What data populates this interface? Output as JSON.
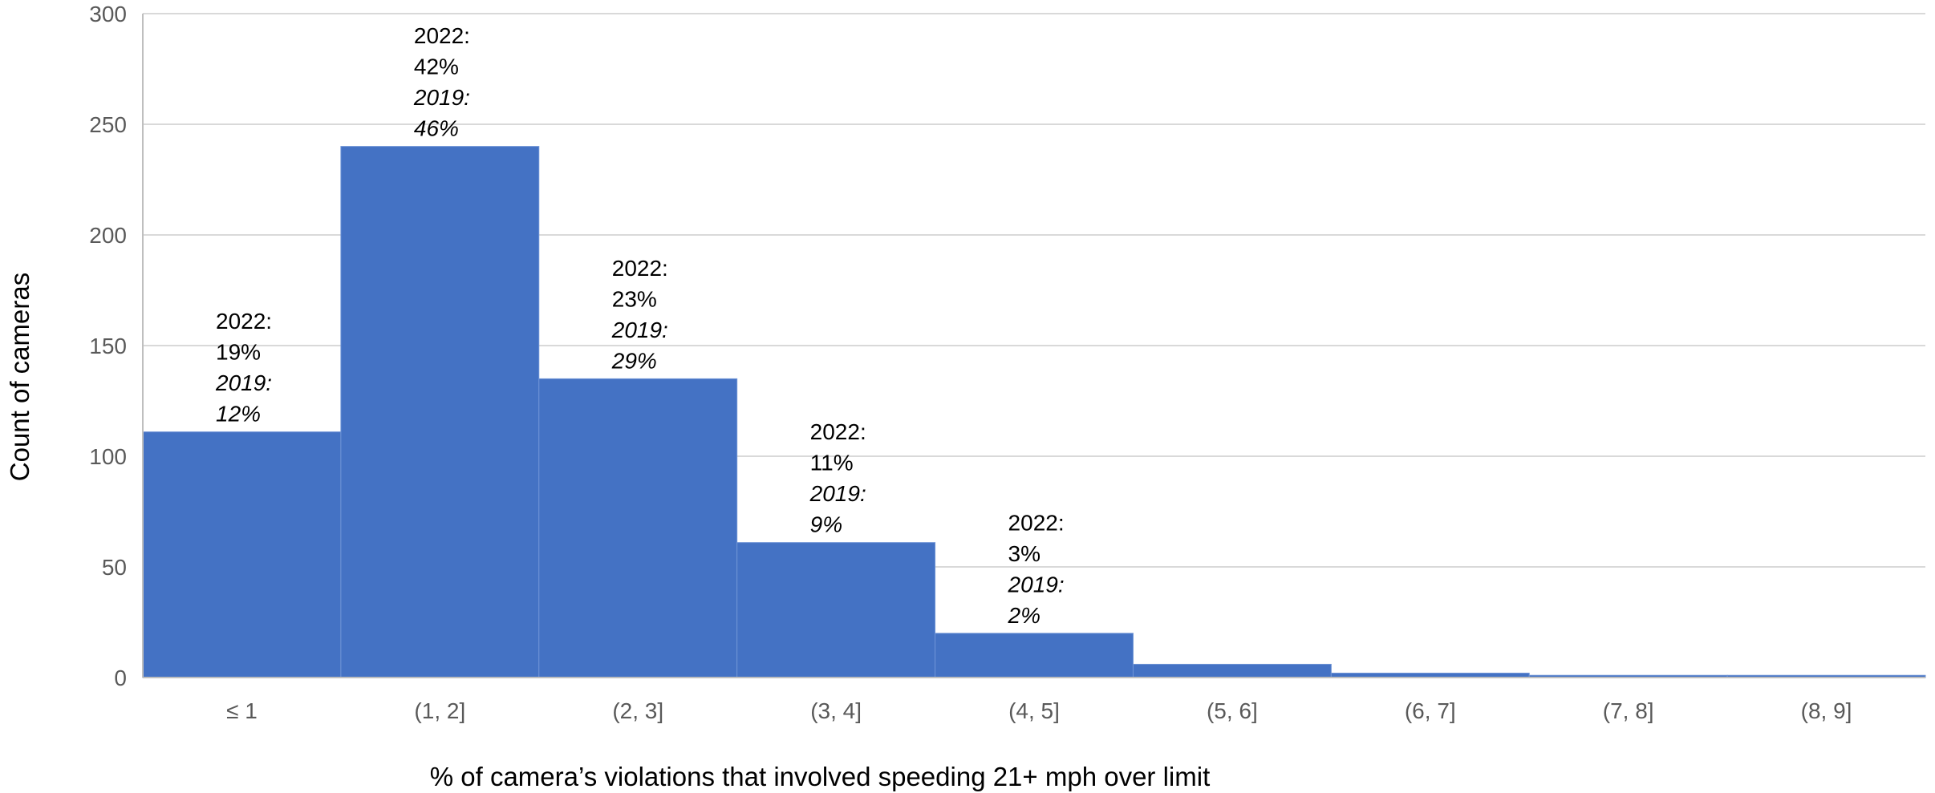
{
  "chart_data": {
    "type": "bar",
    "xlabel": "% of camera’s violations that involved speeding 21+ mph over limit",
    "ylabel": "Count of cameras",
    "ylim": [
      0,
      300
    ],
    "yticks": [
      0,
      50,
      100,
      150,
      200,
      250,
      300
    ],
    "grid": true,
    "bar_color": "#4472C4",
    "categories": [
      "≤ 1",
      "(1, 2]",
      "(2, 3]",
      "(3, 4]",
      "(4, 5]",
      "(5, 6]",
      "(6, 7]",
      "(7, 8]",
      "(8, 9]"
    ],
    "values": [
      111,
      240,
      135,
      61,
      20,
      6,
      2,
      1,
      1
    ],
    "annotations": [
      {
        "category": "≤ 1",
        "lines": [
          {
            "text": "2022:",
            "italic": false
          },
          {
            "text": "19%",
            "italic": false
          },
          {
            "text": "2019:",
            "italic": true
          },
          {
            "text": "12%",
            "italic": true
          }
        ]
      },
      {
        "category": "(1, 2]",
        "lines": [
          {
            "text": "2022:",
            "italic": false
          },
          {
            "text": "42%",
            "italic": false
          },
          {
            "text": "2019:",
            "italic": true
          },
          {
            "text": "46%",
            "italic": true
          }
        ]
      },
      {
        "category": "(2, 3]",
        "lines": [
          {
            "text": "2022:",
            "italic": false
          },
          {
            "text": "23%",
            "italic": false
          },
          {
            "text": "2019:",
            "italic": true
          },
          {
            "text": "29%",
            "italic": true
          }
        ]
      },
      {
        "category": "(3, 4]",
        "lines": [
          {
            "text": "2022:",
            "italic": false
          },
          {
            "text": "11%",
            "italic": false
          },
          {
            "text": "2019:",
            "italic": true
          },
          {
            "text": "9%",
            "italic": true
          }
        ]
      },
      {
        "category": "(4, 5]",
        "lines": [
          {
            "text": "2022:",
            "italic": false
          },
          {
            "text": "3%",
            "italic": false
          },
          {
            "text": "2019:",
            "italic": true
          },
          {
            "text": "2%",
            "italic": true
          }
        ]
      }
    ]
  }
}
